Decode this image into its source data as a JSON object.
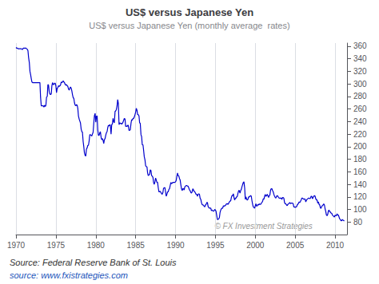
{
  "chart_data": {
    "type": "line",
    "title": "US$ versus Japanese Yen",
    "subtitle": "US$ versus Japanese Yen (monthly average  rates)",
    "annotations": [
      "© FX Investment Strategies",
      "Source: Federal Reserve Bank of St. Louis",
      "source: www.fxistrategies.com"
    ],
    "color": "#0000CC",
    "grid": true,
    "xlim": [
      1970,
      2011.5
    ],
    "ylim": [
      60,
      365
    ],
    "xticks": [
      1970,
      1975,
      1980,
      1985,
      1990,
      1995,
      2000,
      2005,
      2010
    ],
    "yticks": [
      80,
      100,
      120,
      140,
      160,
      180,
      200,
      220,
      240,
      260,
      280,
      300,
      320,
      340,
      360
    ],
    "x": [
      1970.0,
      1970.08,
      1970.17,
      1970.25,
      1970.33,
      1970.42,
      1970.5,
      1970.58,
      1970.67,
      1970.75,
      1970.83,
      1970.92,
      1971.0,
      1971.08,
      1971.17,
      1971.25,
      1971.33,
      1971.42,
      1971.5,
      1971.58,
      1971.67,
      1971.75,
      1971.83,
      1971.92,
      1972.0,
      1972.08,
      1972.17,
      1972.25,
      1972.33,
      1972.42,
      1972.5,
      1972.58,
      1972.67,
      1972.75,
      1972.83,
      1972.92,
      1973.0,
      1973.08,
      1973.17,
      1973.25,
      1973.33,
      1973.42,
      1973.5,
      1973.58,
      1973.67,
      1973.75,
      1973.83,
      1973.92,
      1974.0,
      1974.08,
      1974.17,
      1974.25,
      1974.33,
      1974.42,
      1974.5,
      1974.58,
      1974.67,
      1974.75,
      1974.83,
      1974.92,
      1975.0,
      1975.08,
      1975.17,
      1975.25,
      1975.33,
      1975.42,
      1975.5,
      1975.58,
      1975.67,
      1975.75,
      1975.83,
      1975.92,
      1976.0,
      1976.08,
      1976.17,
      1976.25,
      1976.33,
      1976.42,
      1976.5,
      1976.58,
      1976.67,
      1976.75,
      1976.83,
      1976.92,
      1977.0,
      1977.08,
      1977.17,
      1977.25,
      1977.33,
      1977.42,
      1977.5,
      1977.58,
      1977.67,
      1977.75,
      1977.83,
      1977.92,
      1978.0,
      1978.08,
      1978.17,
      1978.25,
      1978.33,
      1978.42,
      1978.5,
      1978.58,
      1978.67,
      1978.75,
      1978.83,
      1978.92,
      1979.0,
      1979.08,
      1979.17,
      1979.25,
      1979.33,
      1979.42,
      1979.5,
      1979.58,
      1979.67,
      1979.75,
      1979.83,
      1979.92,
      1980.0,
      1980.08,
      1980.17,
      1980.25,
      1980.33,
      1980.42,
      1980.5,
      1980.58,
      1980.67,
      1980.75,
      1980.83,
      1980.92,
      1981.0,
      1981.08,
      1981.17,
      1981.25,
      1981.33,
      1981.42,
      1981.5,
      1981.58,
      1981.67,
      1981.75,
      1981.83,
      1981.92,
      1982.0,
      1982.08,
      1982.17,
      1982.25,
      1982.33,
      1982.42,
      1982.5,
      1982.58,
      1982.67,
      1982.75,
      1982.83,
      1982.92,
      1983.0,
      1983.08,
      1983.17,
      1983.25,
      1983.33,
      1983.42,
      1983.5,
      1983.58,
      1983.67,
      1983.75,
      1983.83,
      1983.92,
      1984.0,
      1984.08,
      1984.17,
      1984.25,
      1984.33,
      1984.42,
      1984.5,
      1984.58,
      1984.67,
      1984.75,
      1984.83,
      1984.92,
      1985.0,
      1985.08,
      1985.17,
      1985.25,
      1985.33,
      1985.42,
      1985.5,
      1985.58,
      1985.67,
      1985.75,
      1985.83,
      1985.92,
      1986.0,
      1986.08,
      1986.17,
      1986.25,
      1986.33,
      1986.42,
      1986.5,
      1986.58,
      1986.67,
      1986.75,
      1986.83,
      1986.92,
      1987.0,
      1987.08,
      1987.17,
      1987.25,
      1987.33,
      1987.42,
      1987.5,
      1987.58,
      1987.67,
      1987.75,
      1987.83,
      1987.92,
      1988.0,
      1988.08,
      1988.17,
      1988.25,
      1988.33,
      1988.42,
      1988.5,
      1988.58,
      1988.67,
      1988.75,
      1988.83,
      1988.92,
      1989.0,
      1989.08,
      1989.17,
      1989.25,
      1989.33,
      1989.42,
      1989.5,
      1989.58,
      1989.67,
      1989.75,
      1989.83,
      1989.92,
      1990.0,
      1990.08,
      1990.17,
      1990.25,
      1990.33,
      1990.42,
      1990.5,
      1990.58,
      1990.67,
      1990.75,
      1990.83,
      1990.92,
      1991.0,
      1991.08,
      1991.17,
      1991.25,
      1991.33,
      1991.42,
      1991.5,
      1991.58,
      1991.67,
      1991.75,
      1991.83,
      1991.92,
      1992.0,
      1992.08,
      1992.17,
      1992.25,
      1992.33,
      1992.42,
      1992.5,
      1992.58,
      1992.67,
      1992.75,
      1992.83,
      1992.92,
      1993.0,
      1993.08,
      1993.17,
      1993.25,
      1993.33,
      1993.42,
      1993.5,
      1993.58,
      1993.67,
      1993.75,
      1993.83,
      1993.92,
      1994.0,
      1994.08,
      1994.17,
      1994.25,
      1994.33,
      1994.42,
      1994.5,
      1994.58,
      1994.67,
      1994.75,
      1994.83,
      1994.92,
      1995.0,
      1995.08,
      1995.17,
      1995.25,
      1995.33,
      1995.42,
      1995.5,
      1995.58,
      1995.67,
      1995.75,
      1995.83,
      1995.92,
      1996.0,
      1996.08,
      1996.17,
      1996.25,
      1996.33,
      1996.42,
      1996.5,
      1996.58,
      1996.67,
      1996.75,
      1996.83,
      1996.92,
      1997.0,
      1997.08,
      1997.17,
      1997.25,
      1997.33,
      1997.42,
      1997.5,
      1997.58,
      1997.67,
      1997.75,
      1997.83,
      1997.92,
      1998.0,
      1998.08,
      1998.17,
      1998.25,
      1998.33,
      1998.42,
      1998.5,
      1998.58,
      1998.67,
      1998.75,
      1998.83,
      1998.92,
      1999.0,
      1999.08,
      1999.17,
      1999.25,
      1999.33,
      1999.42,
      1999.5,
      1999.58,
      1999.67,
      1999.75,
      1999.83,
      1999.92,
      2000.0,
      2000.08,
      2000.17,
      2000.25,
      2000.33,
      2000.42,
      2000.5,
      2000.58,
      2000.67,
      2000.75,
      2000.83,
      2000.92,
      2001.0,
      2001.08,
      2001.17,
      2001.25,
      2001.33,
      2001.42,
      2001.5,
      2001.58,
      2001.67,
      2001.75,
      2001.83,
      2001.92,
      2002.0,
      2002.08,
      2002.17,
      2002.25,
      2002.33,
      2002.42,
      2002.5,
      2002.58,
      2002.67,
      2002.75,
      2002.83,
      2002.92,
      2003.0,
      2003.08,
      2003.17,
      2003.25,
      2003.33,
      2003.42,
      2003.5,
      2003.58,
      2003.67,
      2003.75,
      2003.83,
      2003.92,
      2004.0,
      2004.08,
      2004.17,
      2004.25,
      2004.33,
      2004.42,
      2004.5,
      2004.58,
      2004.67,
      2004.75,
      2004.83,
      2004.92,
      2005.0,
      2005.08,
      2005.17,
      2005.25,
      2005.33,
      2005.42,
      2005.5,
      2005.58,
      2005.67,
      2005.75,
      2005.83,
      2005.92,
      2006.0,
      2006.08,
      2006.17,
      2006.25,
      2006.33,
      2006.42,
      2006.5,
      2006.58,
      2006.67,
      2006.75,
      2006.83,
      2006.92,
      2007.0,
      2007.08,
      2007.17,
      2007.25,
      2007.33,
      2007.42,
      2007.5,
      2007.58,
      2007.67,
      2007.75,
      2007.83,
      2007.92,
      2008.0,
      2008.08,
      2008.17,
      2008.25,
      2008.33,
      2008.42,
      2008.5,
      2008.58,
      2008.67,
      2008.75,
      2008.83,
      2008.92,
      2009.0,
      2009.08,
      2009.17,
      2009.25,
      2009.33,
      2009.42,
      2009.5,
      2009.58,
      2009.67,
      2009.75,
      2009.83,
      2009.92,
      2010.0,
      2010.08,
      2010.17,
      2010.25,
      2010.33,
      2010.42,
      2010.5,
      2010.58,
      2010.67,
      2010.75,
      2010.83,
      2010.92,
      2011.0,
      2011.08,
      2011.17
    ],
    "values": [
      358,
      357,
      357,
      356,
      356,
      356,
      356,
      356,
      356,
      355,
      355,
      357,
      357,
      357,
      357,
      357,
      356,
      355,
      353,
      342,
      334,
      320,
      315,
      308,
      303,
      302,
      302,
      302,
      302,
      302,
      302,
      302,
      302,
      302,
      302,
      302,
      302,
      279,
      265,
      265,
      265,
      265,
      263,
      266,
      264,
      266,
      279,
      280,
      299,
      298,
      287,
      284,
      283,
      284,
      297,
      302,
      299,
      299,
      301,
      301,
      297,
      286,
      293,
      294,
      297,
      296,
      297,
      298,
      303,
      302,
      303,
      305,
      303,
      302,
      299,
      298,
      299,
      297,
      296,
      292,
      290,
      293,
      295,
      293,
      289,
      283,
      278,
      277,
      270,
      266,
      265,
      267,
      266,
      261,
      249,
      244,
      241,
      238,
      228,
      224,
      223,
      208,
      200,
      190,
      186,
      185,
      196,
      198,
      202,
      202,
      209,
      219,
      219,
      218,
      217,
      220,
      223,
      237,
      249,
      253,
      239,
      248,
      249,
      227,
      218,
      218,
      222,
      224,
      215,
      211,
      213,
      210,
      205,
      211,
      213,
      218,
      222,
      224,
      230,
      234,
      233,
      235,
      234,
      220,
      235,
      236,
      245,
      240,
      238,
      256,
      257,
      259,
      265,
      275,
      269,
      235,
      238,
      237,
      237,
      236,
      237,
      239,
      242,
      245,
      244,
      232,
      233,
      232,
      234,
      234,
      226,
      226,
      227,
      237,
      243,
      242,
      245,
      245,
      247,
      251,
      255,
      261,
      258,
      251,
      251,
      249,
      238,
      237,
      219,
      216,
      203,
      203,
      194,
      184,
      179,
      170,
      168,
      168,
      158,
      154,
      155,
      156,
      163,
      162,
      154,
      153,
      151,
      143,
      140,
      144,
      150,
      147,
      143,
      143,
      135,
      128,
      128,
      129,
      127,
      125,
      124,
      127,
      134,
      134,
      135,
      128,
      121,
      124,
      128,
      128,
      132,
      133,
      138,
      143,
      141,
      142,
      143,
      143,
      143,
      143,
      144,
      146,
      153,
      158,
      154,
      153,
      149,
      147,
      139,
      133,
      130,
      133,
      133,
      131,
      136,
      137,
      138,
      138,
      137,
      137,
      134,
      131,
      130,
      127,
      126,
      128,
      133,
      131,
      129,
      128,
      126,
      124,
      124,
      121,
      124,
      125,
      124,
      118,
      116,
      111,
      108,
      107,
      107,
      105,
      104,
      107,
      108,
      111,
      111,
      105,
      103,
      102,
      102,
      102,
      98,
      99,
      98,
      97,
      98,
      100,
      99,
      97,
      90,
      84,
      84,
      85,
      87,
      95,
      99,
      101,
      102,
      102,
      106,
      105,
      106,
      106,
      108,
      109,
      109,
      108,
      110,
      112,
      113,
      114,
      119,
      122,
      122,
      125,
      119,
      115,
      118,
      118,
      120,
      121,
      126,
      130,
      130,
      126,
      130,
      132,
      136,
      140,
      143,
      144,
      134,
      116,
      120,
      116,
      115,
      116,
      120,
      120,
      121,
      122,
      121,
      114,
      108,
      104,
      103,
      102,
      106,
      109,
      105,
      106,
      108,
      107,
      109,
      108,
      108,
      110,
      111,
      113,
      117,
      116,
      121,
      124,
      121,
      122,
      124,
      122,
      119,
      122,
      123,
      131,
      133,
      133,
      130,
      128,
      124,
      121,
      119,
      118,
      121,
      122,
      121,
      119,
      118,
      118,
      118,
      118,
      116,
      119,
      119,
      118,
      111,
      109,
      109,
      107,
      106,
      108,
      109,
      110,
      111,
      109,
      110,
      110,
      110,
      109,
      104,
      104,
      103,
      104,
      104,
      107,
      108,
      110,
      112,
      111,
      113,
      115,
      118,
      118,
      117,
      116,
      117,
      116,
      112,
      115,
      116,
      117,
      118,
      118,
      117,
      118,
      121,
      121,
      117,
      119,
      121,
      122,
      121,
      117,
      115,
      115,
      110,
      112,
      108,
      107,
      102,
      102,
      105,
      106,
      107,
      109,
      107,
      101,
      97,
      91,
      90,
      92,
      98,
      99,
      96,
      96,
      94,
      94,
      91,
      90,
      89,
      88,
      91,
      90,
      90,
      93,
      91,
      91,
      88,
      85,
      84,
      82,
      82,
      84,
      83,
      82,
      82
    ]
  }
}
